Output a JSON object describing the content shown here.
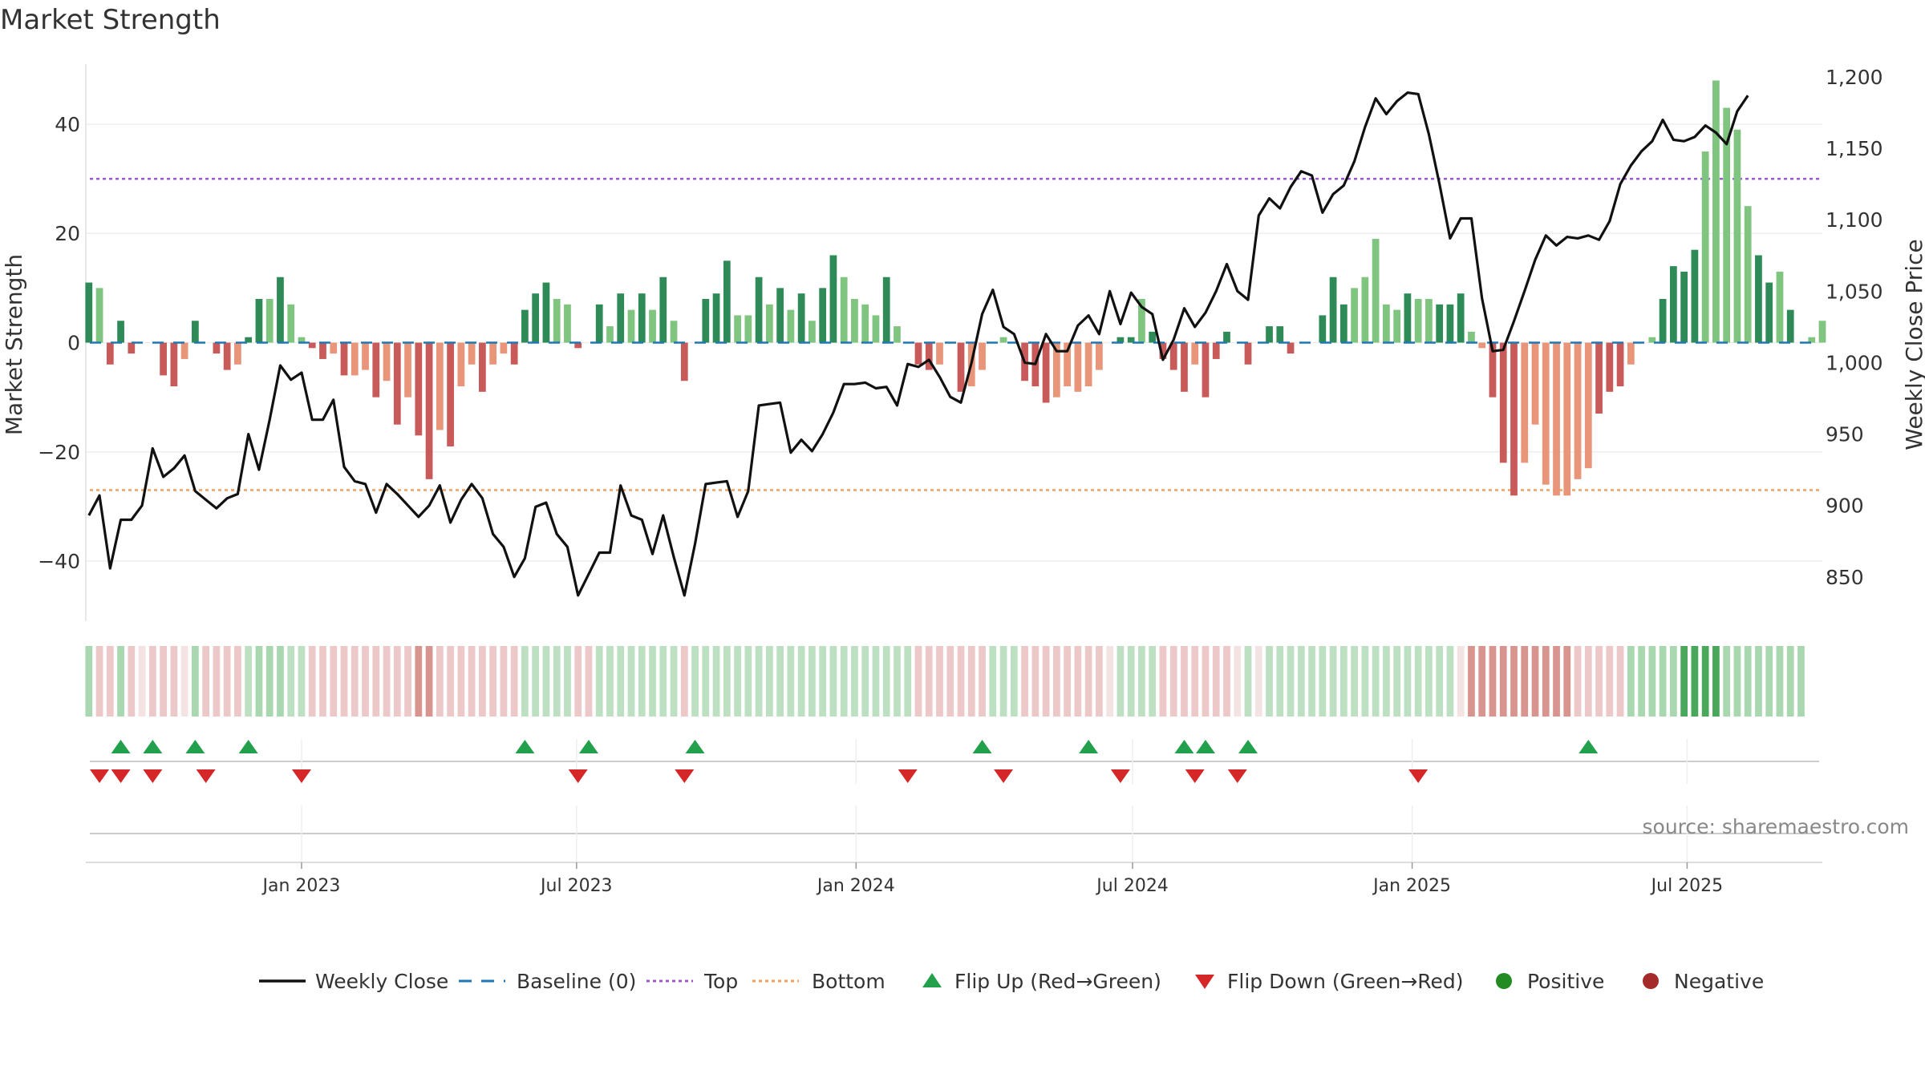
{
  "title": "Market Strength",
  "source": "source: sharemaestro.com",
  "colors": {
    "strong_green": "#2e8b57",
    "light_green": "#7fc47f",
    "strong_red": "#c85a5a",
    "light_red": "#e8957a",
    "price_line": "#111111",
    "top_line": "#9b59d0",
    "bottom_line": "#f0a060",
    "baseline": "#1f77b4",
    "flip_up": "#22a04b",
    "flip_down": "#d62728",
    "positive": "#228b22",
    "negative": "#a52a2a"
  },
  "chart_data": {
    "type": "bar",
    "title": "Market Strength",
    "ylabel_left": "Market Strength",
    "ylabel_right": "Weekly Close Price",
    "left_ticks": [
      40,
      20,
      0,
      -20,
      -40
    ],
    "left_tick_labels": [
      "40",
      "20",
      "0",
      "−20",
      "−40"
    ],
    "left_ylim": [
      -51,
      51
    ],
    "right_ticks": [
      1200,
      1150,
      1100,
      1050,
      1000,
      950,
      900,
      850
    ],
    "right_tick_labels": [
      "1,200",
      "1,150",
      "1,100",
      "1,050",
      "1,000",
      "950",
      "900",
      "850"
    ],
    "right_ylim": [
      819,
      1209
    ],
    "top_level": 30,
    "bottom_level": -27,
    "x_start": "2022-08-12",
    "x_end": "2025-09-28",
    "x_ticks": [
      "2023-01-01",
      "2023-07-01",
      "2024-01-01",
      "2024-07-01",
      "2025-01-01",
      "2025-07-01"
    ],
    "x_tick_labels": [
      "Jan 2023",
      "Jul 2023",
      "Jan 2024",
      "Jul 2024",
      "Jan 2025",
      "Jul 2025"
    ],
    "first_week": "2022-08-14",
    "strength": [
      11,
      10,
      -4,
      4,
      -2,
      0,
      0,
      -6,
      -8,
      -3,
      4,
      0,
      -2,
      -5,
      -4,
      1,
      8,
      8,
      12,
      7,
      1,
      -1,
      -3,
      -2,
      -6,
      -6,
      -5,
      -10,
      -7,
      -15,
      -10,
      -17,
      -25,
      -16,
      -19,
      -8,
      -4,
      -9,
      -4,
      -2,
      -4,
      6,
      9,
      11,
      8,
      7,
      -1,
      0,
      7,
      3,
      9,
      6,
      9,
      6,
      12,
      4,
      -7,
      0,
      8,
      9,
      15,
      5,
      5,
      12,
      7,
      10,
      6,
      9,
      4,
      10,
      16,
      12,
      8,
      7,
      5,
      12,
      3,
      0,
      -4,
      -5,
      -4,
      0,
      -9,
      -8,
      -5,
      0,
      1,
      0,
      -7,
      -8,
      -11,
      -10,
      -8,
      -9,
      -8,
      -5,
      0,
      1,
      1,
      8,
      2,
      -3,
      -5,
      -9,
      -4,
      -10,
      -3,
      2,
      0,
      -4,
      0,
      3,
      3,
      -2,
      0,
      0,
      5,
      12,
      7,
      10,
      12,
      19,
      7,
      6,
      9,
      8,
      8,
      7,
      7,
      9,
      2,
      -1,
      -10,
      -22,
      -28,
      -22,
      -15,
      -26,
      -28,
      -28,
      -25,
      -23,
      -13,
      -9,
      -8,
      -4,
      0,
      1,
      8,
      14,
      13,
      17,
      35,
      48,
      43,
      39,
      25,
      16,
      11,
      13,
      6,
      0,
      1,
      4
    ],
    "strength_style": [
      "s",
      "l",
      "s",
      "s",
      "s",
      "s",
      "s",
      "s",
      "s",
      "l",
      "s",
      "s",
      "s",
      "s",
      "l",
      "s",
      "s",
      "l",
      "s",
      "l",
      "l",
      "s",
      "s",
      "l",
      "s",
      "l",
      "l",
      "s",
      "l",
      "s",
      "l",
      "s",
      "s",
      "l",
      "s",
      "l",
      "l",
      "s",
      "l",
      "l",
      "s",
      "s",
      "s",
      "s",
      "l",
      "l",
      "s",
      "s",
      "s",
      "l",
      "s",
      "l",
      "s",
      "l",
      "s",
      "l",
      "s",
      "s",
      "s",
      "s",
      "s",
      "l",
      "l",
      "s",
      "l",
      "s",
      "l",
      "s",
      "l",
      "s",
      "s",
      "l",
      "l",
      "l",
      "l",
      "s",
      "l",
      "s",
      "s",
      "s",
      "l",
      "s",
      "s",
      "l",
      "l",
      "s",
      "l",
      "l",
      "s",
      "s",
      "s",
      "l",
      "l",
      "l",
      "l",
      "l",
      "s",
      "s",
      "s",
      "l",
      "s",
      "s",
      "s",
      "s",
      "l",
      "s",
      "s",
      "s",
      "s",
      "s",
      "l",
      "s",
      "s",
      "s",
      "s",
      "l",
      "s",
      "s",
      "s",
      "l",
      "l",
      "l",
      "l",
      "l",
      "s",
      "l",
      "l",
      "s",
      "s",
      "s",
      "l",
      "l",
      "s",
      "s",
      "s",
      "l",
      "l",
      "l",
      "l",
      "l",
      "l",
      "l",
      "s",
      "s",
      "s",
      "l",
      "s",
      "l",
      "s",
      "s",
      "s",
      "s",
      "l",
      "l",
      "l",
      "l",
      "l",
      "s",
      "s",
      "l",
      "s",
      "s"
    ],
    "close": [
      893,
      907,
      856,
      890,
      890,
      900,
      940,
      920,
      926,
      935,
      910,
      904,
      898,
      905,
      908,
      950,
      925,
      960,
      998,
      988,
      993,
      960,
      960,
      974,
      927,
      917,
      915,
      895,
      915,
      908,
      900,
      892,
      900,
      914,
      888,
      904,
      915,
      905,
      880,
      871,
      850,
      863,
      899,
      902,
      880,
      871,
      837,
      852,
      867,
      867,
      914,
      893,
      890,
      866,
      893,
      864,
      837,
      873,
      915,
      916,
      917,
      892,
      910,
      970,
      971,
      972,
      937,
      946,
      938,
      950,
      965,
      985,
      985,
      986,
      982,
      983,
      970,
      999,
      997,
      1002,
      990,
      976,
      972,
      1000,
      1034,
      1051,
      1025,
      1020,
      1000,
      999,
      1020,
      1008,
      1008,
      1026,
      1033,
      1020,
      1050,
      1027,
      1049,
      1039,
      1034,
      1002,
      1016,
      1038,
      1025,
      1035,
      1050,
      1069,
      1050,
      1044,
      1103,
      1115,
      1108,
      1123,
      1134,
      1131,
      1105,
      1118,
      1124,
      1141,
      1165,
      1185,
      1174,
      1183,
      1189,
      1188,
      1160,
      1125,
      1087,
      1101,
      1101,
      1045,
      1008,
      1009,
      1029,
      1050,
      1072,
      1089,
      1082,
      1088,
      1087,
      1089,
      1086,
      1099,
      1125,
      1138,
      1148,
      1155,
      1170,
      1156,
      1155,
      1158,
      1166,
      1161,
      1153,
      1176,
      1187
    ],
    "regime": [
      3,
      2,
      1,
      3,
      1,
      0,
      0,
      1,
      1,
      0,
      3,
      0,
      1,
      1,
      1,
      2,
      3,
      3,
      3,
      2,
      2,
      0,
      1,
      1,
      1,
      1,
      1,
      1,
      1,
      2,
      2,
      2,
      2,
      2,
      2,
      1,
      1,
      1,
      1,
      1,
      1,
      2,
      2,
      2,
      2,
      2,
      0,
      0,
      2,
      2,
      2,
      2,
      2,
      2,
      2,
      2,
      1,
      2,
      2,
      2,
      2,
      2,
      2,
      2,
      2,
      2,
      2,
      2,
      2,
      2,
      2,
      2,
      2,
      2,
      2,
      2,
      2,
      2,
      1,
      1,
      1,
      1,
      1,
      1,
      1,
      2,
      2,
      2,
      1,
      1,
      1,
      1,
      1,
      1,
      1,
      1,
      0,
      2,
      2,
      2,
      2,
      1,
      1,
      1,
      1,
      1,
      1,
      1,
      0,
      2,
      0,
      2,
      2,
      2,
      2,
      2,
      2,
      2,
      2,
      2,
      2,
      2,
      2,
      2,
      2,
      2,
      2,
      2,
      2,
      0,
      1,
      2,
      2,
      2,
      2,
      2,
      2,
      2,
      2,
      1,
      1,
      1,
      1,
      1,
      1,
      3,
      3,
      3,
      3,
      3,
      4,
      4,
      4,
      4,
      3,
      3,
      3,
      3,
      3,
      3,
      3,
      3
    ],
    "flip_up_weeks": [
      3,
      6,
      10,
      15,
      41,
      47,
      57,
      84,
      94,
      103,
      105,
      109,
      141
    ],
    "flip_down_weeks": [
      1,
      3,
      6,
      11,
      20,
      46,
      56,
      77,
      86,
      97,
      104,
      108,
      125
    ],
    "legend": [
      {
        "label": "Weekly Close",
        "kind": "line"
      },
      {
        "label": "Baseline (0)",
        "kind": "dash"
      },
      {
        "label": "Top",
        "kind": "dot-purple"
      },
      {
        "label": "Bottom",
        "kind": "dot-orange"
      },
      {
        "label": "Flip Up (Red→Green)",
        "kind": "tri-up"
      },
      {
        "label": "Flip Down (Green→Red)",
        "kind": "tri-down"
      },
      {
        "label": "Positive",
        "kind": "circle-green"
      },
      {
        "label": "Negative",
        "kind": "circle-red"
      }
    ]
  }
}
